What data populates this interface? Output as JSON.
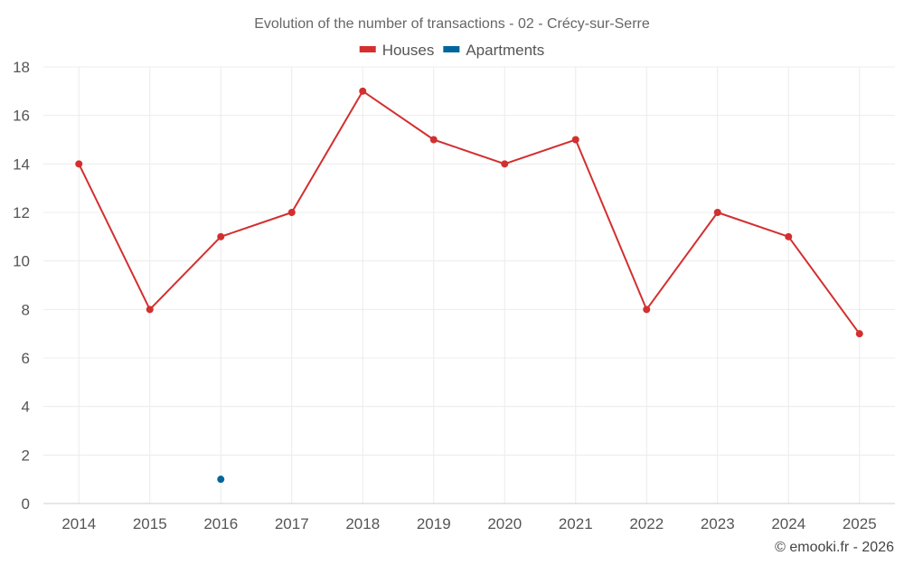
{
  "chart_data": {
    "type": "line",
    "title": "Evolution of the number of transactions - 02 - Crécy-sur-Serre",
    "categories": [
      "2014",
      "2015",
      "2016",
      "2017",
      "2018",
      "2019",
      "2020",
      "2021",
      "2022",
      "2023",
      "2024",
      "2025"
    ],
    "series": [
      {
        "name": "Houses",
        "color": "#d32f2f",
        "values": [
          14,
          8,
          11,
          12,
          17,
          15,
          14,
          15,
          8,
          12,
          11,
          7
        ]
      },
      {
        "name": "Apartments",
        "color": "#01669b",
        "values": [
          null,
          null,
          1,
          null,
          null,
          null,
          null,
          null,
          null,
          null,
          null,
          null
        ]
      }
    ],
    "yticks": [
      0,
      2,
      4,
      6,
      8,
      10,
      12,
      14,
      16,
      18
    ],
    "ylim": [
      0,
      18
    ],
    "xlabel": "",
    "ylabel": "",
    "grid": true,
    "legend_position": "top-center"
  },
  "credit": "© emooki.fr - 2026"
}
